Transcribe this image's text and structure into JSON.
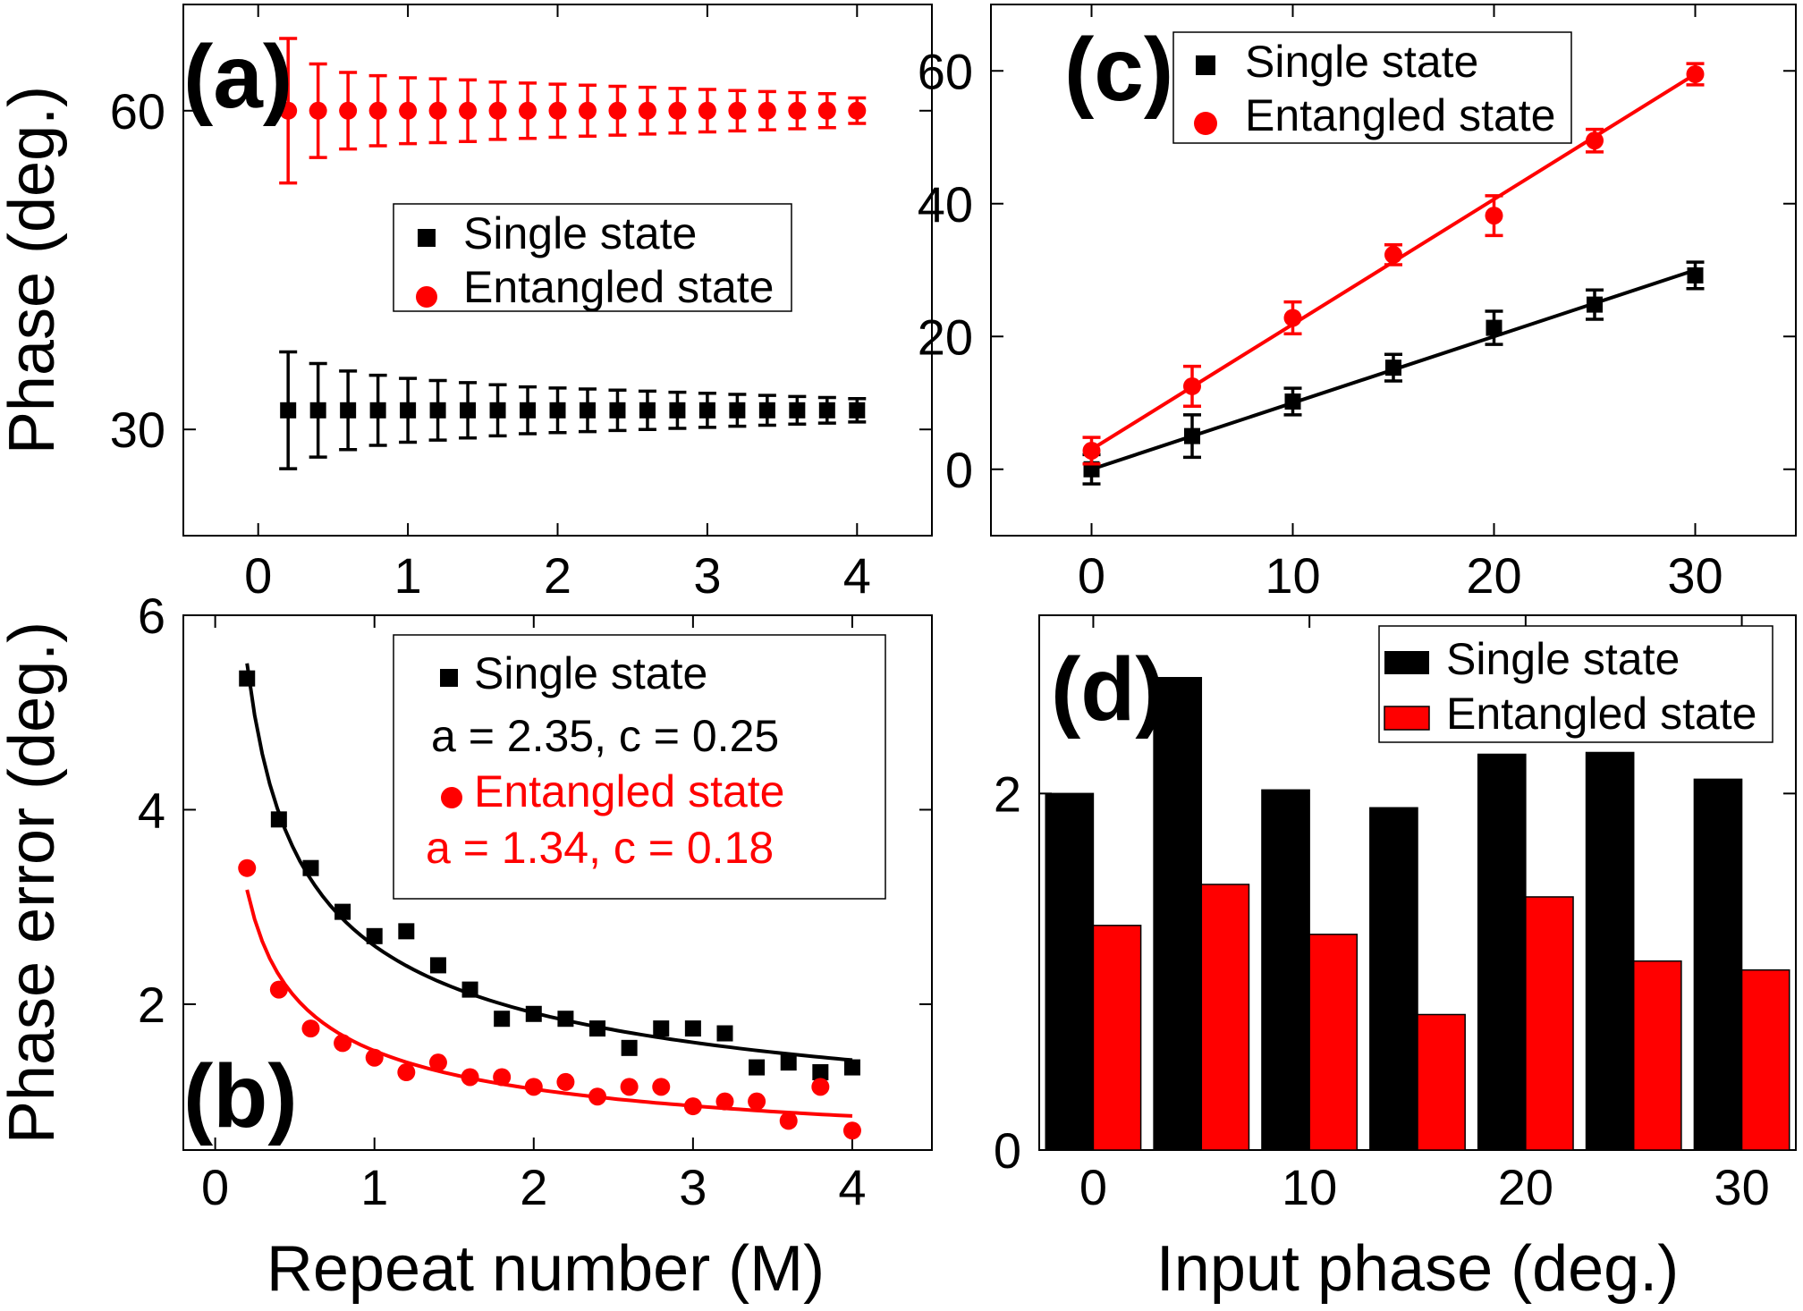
{
  "chart_data": [
    {
      "panel": "(a)",
      "type": "scatter",
      "xlabel": "",
      "ylabel": "Phase (deg.)",
      "xlim": [
        -0.5,
        4.5
      ],
      "ylim": [
        20,
        70
      ],
      "xticks": [
        0,
        1,
        2,
        3,
        4
      ],
      "yticks": [
        30,
        60
      ],
      "legend": {
        "placement": "center-right"
      },
      "series": [
        {
          "name": "Single state",
          "marker": "square",
          "color": "#000000",
          "x": [
            0.2,
            0.4,
            0.6,
            0.8,
            1.0,
            1.2,
            1.4,
            1.6,
            1.8,
            2.0,
            2.2,
            2.4,
            2.6,
            2.8,
            3.0,
            3.2,
            3.4,
            3.6,
            3.8,
            4.0
          ],
          "y": [
            31.8,
            31.8,
            31.8,
            31.8,
            31.8,
            31.8,
            31.8,
            31.8,
            31.8,
            31.8,
            31.8,
            31.8,
            31.8,
            31.8,
            31.8,
            31.8,
            31.8,
            31.8,
            31.8,
            31.8
          ],
          "err": [
            5.5,
            4.4,
            3.7,
            3.3,
            3.0,
            2.8,
            2.6,
            2.4,
            2.2,
            2.1,
            2.0,
            1.9,
            1.8,
            1.7,
            1.6,
            1.5,
            1.4,
            1.3,
            1.2,
            1.1
          ]
        },
        {
          "name": "Entangled state",
          "marker": "circle",
          "color": "#ff0000",
          "x": [
            0.2,
            0.4,
            0.6,
            0.8,
            1.0,
            1.2,
            1.4,
            1.6,
            1.8,
            2.0,
            2.2,
            2.4,
            2.6,
            2.8,
            3.0,
            3.2,
            3.4,
            3.6,
            3.8,
            4.0
          ],
          "y": [
            60,
            60,
            60,
            60,
            60,
            60,
            60,
            60,
            60,
            60,
            60,
            60,
            60,
            60,
            60,
            60,
            60,
            60,
            60,
            60
          ],
          "err": [
            6.8,
            4.4,
            3.6,
            3.3,
            3.1,
            3.0,
            2.9,
            2.7,
            2.6,
            2.5,
            2.4,
            2.3,
            2.2,
            2.1,
            2.0,
            1.9,
            1.8,
            1.7,
            1.6,
            1.2
          ]
        }
      ]
    },
    {
      "panel": "(b)",
      "type": "scatter",
      "xlabel": "Repeat number (M)",
      "ylabel": "Phase error (deg.)",
      "xlim": [
        -0.2,
        4.5
      ],
      "ylim": [
        0.5,
        6
      ],
      "xticks": [
        0,
        1,
        2,
        3,
        4
      ],
      "yticks": [
        2,
        4,
        6
      ],
      "legend": {
        "placement": "top-right"
      },
      "series": [
        {
          "name": "Single state",
          "marker": "square",
          "color": "#000000",
          "params": "a = 2.35, c = 0.25",
          "fit": {
            "a": 2.35,
            "c": 0.25
          },
          "x": [
            0.2,
            0.4,
            0.6,
            0.8,
            1.0,
            1.2,
            1.4,
            1.6,
            1.8,
            2.0,
            2.2,
            2.4,
            2.6,
            2.8,
            3.0,
            3.2,
            3.4,
            3.6,
            3.8,
            4.0
          ],
          "y": [
            5.35,
            3.9,
            3.4,
            2.95,
            2.7,
            2.75,
            2.4,
            2.15,
            1.85,
            1.9,
            1.85,
            1.75,
            1.55,
            1.75,
            1.75,
            1.7,
            1.35,
            1.4,
            1.3,
            1.35
          ]
        },
        {
          "name": "Entangled state",
          "marker": "circle",
          "color": "#ff0000",
          "params": "a = 1.34, c = 0.18",
          "fit": {
            "a": 1.34,
            "c": 0.18
          },
          "x": [
            0.2,
            0.4,
            0.6,
            0.8,
            1.0,
            1.2,
            1.4,
            1.6,
            1.8,
            2.0,
            2.2,
            2.4,
            2.6,
            2.8,
            3.0,
            3.2,
            3.4,
            3.6,
            3.8,
            4.0
          ],
          "y": [
            3.4,
            2.15,
            1.75,
            1.6,
            1.45,
            1.3,
            1.4,
            1.25,
            1.25,
            1.15,
            1.2,
            1.05,
            1.15,
            1.15,
            0.95,
            1.0,
            1.0,
            0.8,
            1.15,
            0.7
          ]
        }
      ]
    },
    {
      "panel": "(c)",
      "type": "scatter",
      "xlabel": "",
      "ylabel": "",
      "xlim": [
        -5,
        35
      ],
      "ylim": [
        -10,
        70
      ],
      "xticks": [
        0,
        10,
        20,
        30
      ],
      "yticks": [
        0,
        20,
        40,
        60
      ],
      "legend": {
        "placement": "top-left"
      },
      "series": [
        {
          "name": "Single state",
          "marker": "square",
          "color": "#000000",
          "fit_line": [
            [
              0,
              0
            ],
            [
              30,
              30
            ]
          ],
          "x": [
            0,
            5,
            10,
            15,
            20,
            25,
            30
          ],
          "y": [
            0,
            5,
            10.2,
            15.3,
            21.3,
            24.8,
            29.2
          ],
          "err": [
            2.2,
            3.2,
            2.0,
            2.0,
            2.5,
            2.2,
            2.0
          ]
        },
        {
          "name": "Entangled state",
          "marker": "circle",
          "color": "#ff0000",
          "fit_line": [
            [
              0,
              3
            ],
            [
              30,
              59.5
            ]
          ],
          "x": [
            0,
            5,
            10,
            15,
            20,
            25,
            30
          ],
          "y": [
            2.8,
            12.5,
            22.8,
            32.3,
            38.2,
            49.5,
            59.5
          ],
          "err": [
            2.0,
            3.0,
            2.4,
            1.5,
            3.0,
            1.7,
            1.6
          ]
        }
      ]
    },
    {
      "panel": "(d)",
      "type": "bar",
      "xlabel": "Input phase (deg.)",
      "ylabel": "",
      "xlim": [
        -2.5,
        32.5
      ],
      "ylim": [
        0,
        3
      ],
      "xticks": [
        0,
        10,
        20,
        30
      ],
      "yticks": [
        0,
        2
      ],
      "legend": {
        "placement": "top-right"
      },
      "categories": [
        0,
        5,
        10,
        15,
        20,
        25,
        30
      ],
      "series": [
        {
          "name": "Single state",
          "color": "#000000",
          "values": [
            2.0,
            2.65,
            2.02,
            1.92,
            2.22,
            2.23,
            2.08
          ]
        },
        {
          "name": "Entangled state",
          "color": "#ff0000",
          "values": [
            1.26,
            1.49,
            1.21,
            0.76,
            1.42,
            1.06,
            1.01
          ]
        }
      ]
    }
  ]
}
